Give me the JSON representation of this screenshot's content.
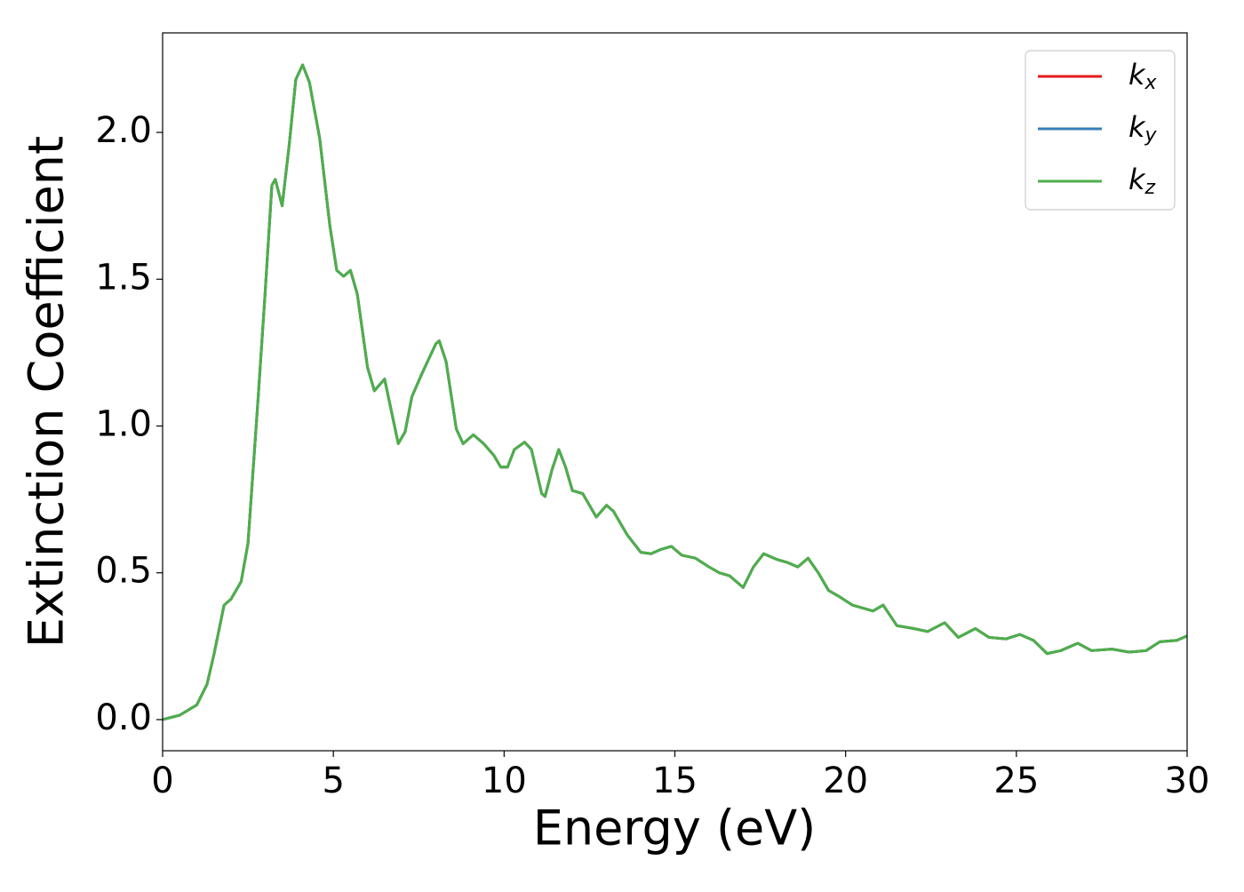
{
  "chart_data": {
    "type": "line",
    "xlabel": "Energy (eV)",
    "ylabel": "Extinction Coefficient",
    "x": [
      0,
      0.5,
      1.0,
      1.3,
      1.5,
      1.8,
      2.0,
      2.3,
      2.5,
      2.8,
      3.0,
      3.2,
      3.3,
      3.5,
      3.7,
      3.9,
      4.1,
      4.3,
      4.6,
      4.9,
      5.1,
      5.3,
      5.5,
      5.7,
      6.0,
      6.2,
      6.5,
      6.7,
      6.9,
      7.1,
      7.3,
      7.6,
      8.0,
      8.1,
      8.3,
      8.6,
      8.8,
      9.1,
      9.4,
      9.7,
      9.9,
      10.1,
      10.3,
      10.6,
      10.8,
      11.1,
      11.2,
      11.4,
      11.6,
      11.8,
      12.0,
      12.3,
      12.7,
      13.0,
      13.2,
      13.6,
      14.0,
      14.3,
      14.6,
      14.9,
      15.2,
      15.6,
      16.0,
      16.3,
      16.6,
      17.0,
      17.3,
      17.6,
      18.0,
      18.3,
      18.6,
      18.9,
      19.2,
      19.5,
      19.8,
      20.2,
      20.8,
      21.1,
      21.5,
      22.0,
      22.4,
      22.9,
      23.3,
      23.8,
      24.2,
      24.7,
      25.1,
      25.5,
      25.9,
      26.3,
      26.8,
      27.2,
      27.8,
      28.3,
      28.8,
      29.2,
      29.7,
      30
    ],
    "series": [
      {
        "name": "kx",
        "color": "#e41a1c",
        "values": [
          0,
          0.015,
          0.05,
          0.12,
          0.22,
          0.39,
          0.41,
          0.47,
          0.6,
          1.1,
          1.45,
          1.82,
          1.84,
          1.75,
          1.95,
          2.18,
          2.23,
          2.17,
          1.98,
          1.68,
          1.53,
          1.51,
          1.53,
          1.45,
          1.2,
          1.12,
          1.16,
          1.05,
          0.94,
          0.98,
          1.1,
          1.18,
          1.28,
          1.29,
          1.22,
          0.99,
          0.94,
          0.97,
          0.94,
          0.9,
          0.86,
          0.86,
          0.92,
          0.945,
          0.92,
          0.77,
          0.76,
          0.85,
          0.92,
          0.86,
          0.78,
          0.77,
          0.69,
          0.73,
          0.71,
          0.63,
          0.57,
          0.565,
          0.58,
          0.59,
          0.56,
          0.55,
          0.52,
          0.5,
          0.49,
          0.45,
          0.52,
          0.565,
          0.545,
          0.535,
          0.52,
          0.55,
          0.5,
          0.44,
          0.42,
          0.39,
          0.37,
          0.39,
          0.32,
          0.31,
          0.3,
          0.33,
          0.28,
          0.31,
          0.28,
          0.275,
          0.29,
          0.27,
          0.225,
          0.235,
          0.26,
          0.235,
          0.24,
          0.23,
          0.235,
          0.265,
          0.27,
          0.285
        ]
      },
      {
        "name": "ky",
        "color": "#377eb8",
        "values": [
          0,
          0.015,
          0.05,
          0.12,
          0.22,
          0.39,
          0.41,
          0.47,
          0.6,
          1.1,
          1.45,
          1.82,
          1.84,
          1.75,
          1.95,
          2.18,
          2.23,
          2.17,
          1.98,
          1.68,
          1.53,
          1.51,
          1.53,
          1.45,
          1.2,
          1.12,
          1.16,
          1.05,
          0.94,
          0.98,
          1.1,
          1.18,
          1.28,
          1.29,
          1.22,
          0.99,
          0.94,
          0.97,
          0.94,
          0.9,
          0.86,
          0.86,
          0.92,
          0.945,
          0.92,
          0.77,
          0.76,
          0.85,
          0.92,
          0.86,
          0.78,
          0.77,
          0.69,
          0.73,
          0.71,
          0.63,
          0.57,
          0.565,
          0.58,
          0.59,
          0.56,
          0.55,
          0.52,
          0.5,
          0.49,
          0.45,
          0.52,
          0.565,
          0.545,
          0.535,
          0.52,
          0.55,
          0.5,
          0.44,
          0.42,
          0.39,
          0.37,
          0.39,
          0.32,
          0.31,
          0.3,
          0.33,
          0.28,
          0.31,
          0.28,
          0.275,
          0.29,
          0.27,
          0.225,
          0.235,
          0.26,
          0.235,
          0.24,
          0.23,
          0.235,
          0.265,
          0.27,
          0.285
        ]
      },
      {
        "name": "kz",
        "color": "#4daf4a",
        "values": [
          0,
          0.015,
          0.05,
          0.12,
          0.22,
          0.39,
          0.41,
          0.47,
          0.6,
          1.1,
          1.45,
          1.82,
          1.84,
          1.75,
          1.95,
          2.18,
          2.23,
          2.17,
          1.98,
          1.68,
          1.53,
          1.51,
          1.53,
          1.45,
          1.2,
          1.12,
          1.16,
          1.05,
          0.94,
          0.98,
          1.1,
          1.18,
          1.28,
          1.29,
          1.22,
          0.99,
          0.94,
          0.97,
          0.94,
          0.9,
          0.86,
          0.86,
          0.92,
          0.945,
          0.92,
          0.77,
          0.76,
          0.85,
          0.92,
          0.86,
          0.78,
          0.77,
          0.69,
          0.73,
          0.71,
          0.63,
          0.57,
          0.565,
          0.58,
          0.59,
          0.56,
          0.55,
          0.52,
          0.5,
          0.49,
          0.45,
          0.52,
          0.565,
          0.545,
          0.535,
          0.52,
          0.55,
          0.5,
          0.44,
          0.42,
          0.39,
          0.37,
          0.39,
          0.32,
          0.31,
          0.3,
          0.33,
          0.28,
          0.31,
          0.28,
          0.275,
          0.29,
          0.27,
          0.225,
          0.235,
          0.26,
          0.235,
          0.24,
          0.23,
          0.235,
          0.265,
          0.27,
          0.285
        ]
      }
    ],
    "xlim": [
      0,
      30
    ],
    "xticks": [
      0,
      5,
      10,
      15,
      20,
      25,
      30
    ],
    "ylim": [
      -0.106,
      2.339
    ],
    "yticks": [
      {
        "value": 0,
        "label": "0.0"
      },
      0.5,
      {
        "value": 1,
        "label": "1.0"
      },
      1.5,
      {
        "value": 2,
        "label": "2.0"
      }
    ],
    "grid": false,
    "legend": "upper right"
  }
}
